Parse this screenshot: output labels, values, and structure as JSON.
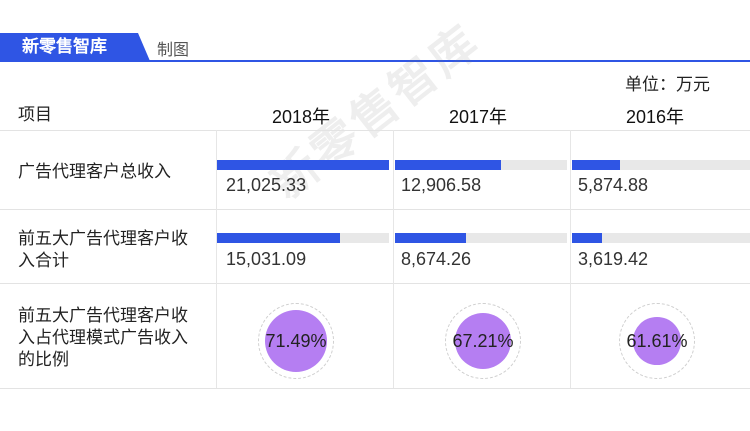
{
  "header": {
    "brand": "新零售智库",
    "made_by": "制图",
    "unit": "单位：万元"
  },
  "watermark": "新零售智库",
  "colors": {
    "accent": "#2f55e4",
    "bar_track": "#e8e8e8",
    "ratio_circle": "#b57ef2"
  },
  "chart_data": {
    "type": "table",
    "first_column_header": "项目",
    "columns": [
      "2018年",
      "2017年",
      "2016年"
    ],
    "rows": [
      {
        "label": "广告代理客户总收入",
        "mark": "bar",
        "values": [
          21025.33,
          12906.58,
          5874.88
        ],
        "display": [
          "21,025.33",
          "12,906.58",
          "5,874.88"
        ]
      },
      {
        "label": "前五大广告代理客户收入合计",
        "mark": "bar",
        "values": [
          15031.09,
          8674.26,
          3619.42
        ],
        "display": [
          "15,031.09",
          "8,674.26",
          "3,619.42"
        ]
      },
      {
        "label": "前五大广告代理客户收入占代理模式广告收入的比例",
        "mark": "circle",
        "values": [
          71.49,
          67.21,
          61.61
        ],
        "display": [
          "71.49%",
          "67.21%",
          "61.61%"
        ]
      }
    ],
    "bar_max": 21025.33
  }
}
